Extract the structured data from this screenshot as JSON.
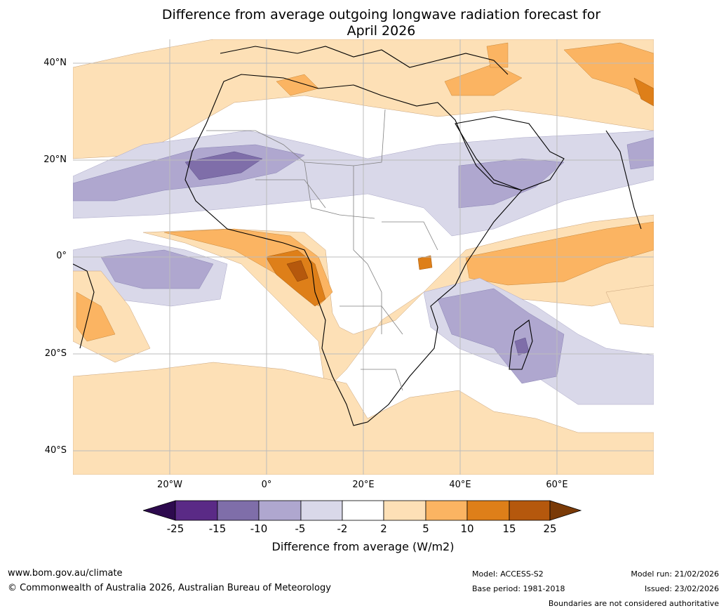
{
  "title": "Difference from average outgoing longwave radiation forecast for April 2026",
  "title_line1": "Difference from average outgoing longwave radiation forecast for",
  "title_line2": "April 2026",
  "map": {
    "region": "Africa",
    "lat_labels": [
      "40°N",
      "20°N",
      "0°",
      "20°S",
      "40°S"
    ],
    "lon_labels": [
      "20°W",
      "0°",
      "20°E",
      "40°E",
      "60°E"
    ],
    "lat_values": [
      40,
      20,
      0,
      -20,
      -40
    ],
    "lon_values": [
      -20,
      0,
      20,
      40,
      60
    ],
    "extent": {
      "lon_min": -40,
      "lon_max": 80,
      "lat_min": -45,
      "lat_max": 45
    }
  },
  "colorbar": {
    "label": "Difference from average (W/m2)",
    "ticks": [
      "-25",
      "-15",
      "-10",
      "-5",
      "-2",
      "2",
      "5",
      "10",
      "15",
      "25"
    ],
    "colors": {
      "below_min": "#2d0a4e",
      "c1": "#5a2a86",
      "c2": "#7f6ea9",
      "c3": "#afa7cf",
      "c4": "#d9d8e9",
      "c5": "#ffffff",
      "c6": "#fde0b6",
      "c7": "#fbb462",
      "c8": "#de7f19",
      "c9": "#b5580d",
      "above_max": "#7a3a07"
    }
  },
  "footer": {
    "website": "www.bom.gov.au/climate",
    "copyright": "© Commonwealth of Australia 2026, Australian Bureau of Meteorology",
    "model": "Model: ACCESS-S2",
    "base_period": "Base period: 1981-2018",
    "model_run": "Model run: 21/02/2026",
    "issued": "Issued: 23/02/2026",
    "disclaimer": "Boundaries are not considered authoritative"
  }
}
